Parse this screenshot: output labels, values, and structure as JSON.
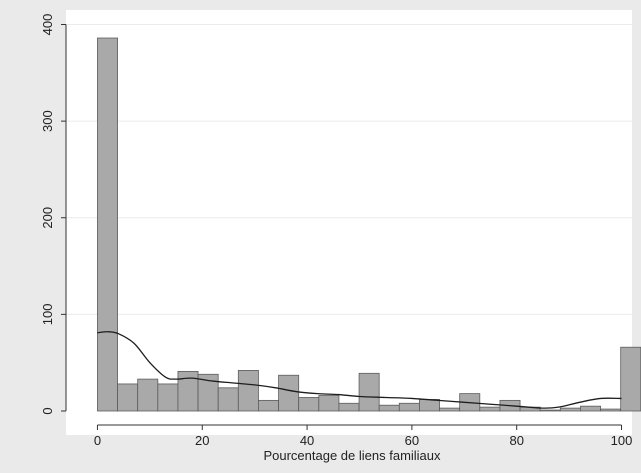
{
  "chart_data": {
    "type": "histogram",
    "xlabel": "Pourcentage de liens familiaux",
    "ylabel": "",
    "xlim": [
      -6,
      102
    ],
    "ylim": [
      0,
      415
    ],
    "x_ticks": [
      0,
      20,
      40,
      60,
      80,
      100
    ],
    "y_ticks": [
      0,
      100,
      200,
      300,
      400
    ],
    "grid": "horizontal",
    "bin_width": 3.84,
    "bins": [
      {
        "x0": 0.0,
        "value": 386
      },
      {
        "x0": 3.84,
        "value": 28
      },
      {
        "x0": 7.68,
        "value": 33
      },
      {
        "x0": 11.52,
        "value": 28
      },
      {
        "x0": 15.36,
        "value": 41
      },
      {
        "x0": 19.2,
        "value": 38
      },
      {
        "x0": 23.04,
        "value": 24
      },
      {
        "x0": 26.88,
        "value": 42
      },
      {
        "x0": 30.72,
        "value": 11
      },
      {
        "x0": 34.56,
        "value": 37
      },
      {
        "x0": 38.4,
        "value": 14
      },
      {
        "x0": 42.24,
        "value": 16
      },
      {
        "x0": 46.08,
        "value": 8
      },
      {
        "x0": 49.92,
        "value": 39
      },
      {
        "x0": 53.76,
        "value": 6
      },
      {
        "x0": 57.6,
        "value": 8
      },
      {
        "x0": 61.44,
        "value": 12
      },
      {
        "x0": 65.28,
        "value": 3
      },
      {
        "x0": 69.12,
        "value": 18
      },
      {
        "x0": 72.96,
        "value": 4
      },
      {
        "x0": 76.8,
        "value": 11
      },
      {
        "x0": 80.64,
        "value": 4
      },
      {
        "x0": 84.48,
        "value": 1
      },
      {
        "x0": 88.32,
        "value": 3
      },
      {
        "x0": 92.16,
        "value": 5
      },
      {
        "x0": 96.0,
        "value": 2
      },
      {
        "x0": 99.84,
        "value": 66
      }
    ],
    "density_curve": {
      "x": [
        0,
        2,
        4,
        7,
        10,
        13,
        15,
        18,
        22,
        26,
        30,
        34,
        38,
        42,
        46,
        50,
        55,
        60,
        65,
        70,
        75,
        80,
        85,
        88,
        92,
        96,
        100
      ],
      "y": [
        81,
        82,
        80,
        70,
        50,
        35,
        33,
        34,
        31,
        29,
        27,
        24,
        20,
        18,
        17,
        15,
        14,
        13,
        11,
        9,
        7,
        5,
        3,
        4,
        9,
        13,
        13
      ]
    },
    "colors": {
      "background": "#eaeaea",
      "plot_background": "#ffffff",
      "bar_fill": "#a9a9a9",
      "bar_stroke": "#5c5c5c",
      "curve": "#1e1e1e",
      "grid": "#ececec"
    }
  }
}
